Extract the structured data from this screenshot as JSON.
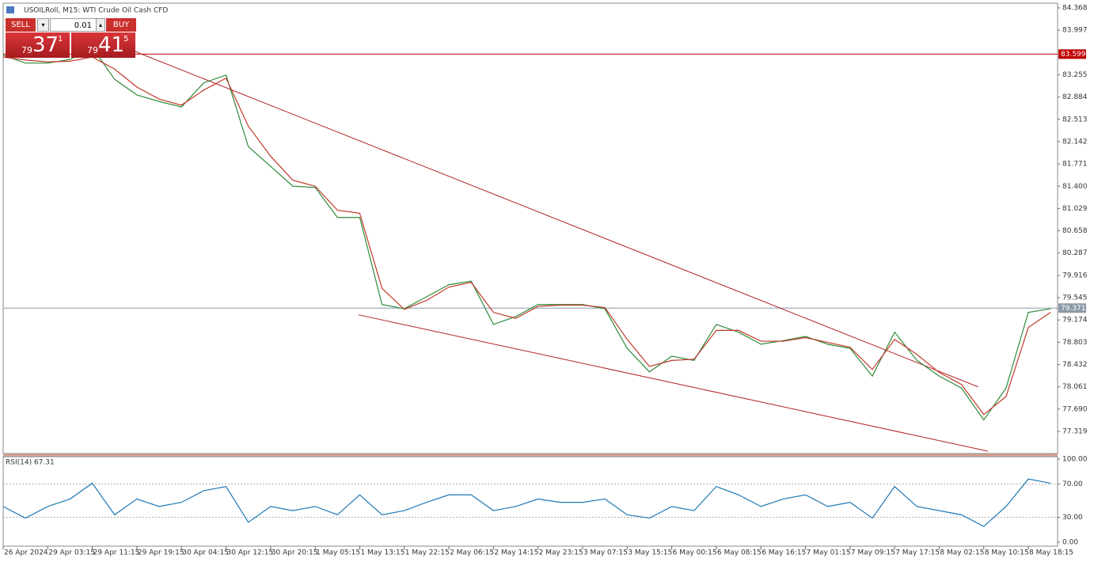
{
  "chart_data": [
    {
      "type": "line",
      "title": "USOILRoll, M15:  WTI Crude Oil Cash CFD",
      "x": [
        0,
        16,
        32,
        48,
        64,
        80,
        96,
        112,
        128,
        144,
        160,
        176,
        192,
        208,
        224,
        240,
        256,
        272,
        288,
        304,
        320,
        336,
        352,
        368,
        384,
        400,
        416,
        432,
        448,
        464,
        480,
        496,
        512,
        528,
        544,
        560,
        576,
        592,
        608,
        624,
        640,
        656,
        672,
        688,
        704,
        720,
        736,
        752
      ],
      "series": [
        {
          "color": "#2e8b3a",
          "values": [
            83.58,
            83.45,
            83.45,
            83.51,
            83.71,
            83.18,
            82.92,
            82.81,
            82.72,
            83.12,
            83.25,
            82.06,
            81.73,
            81.4,
            81.38,
            80.88,
            80.88,
            79.43,
            79.36,
            79.56,
            79.76,
            79.82,
            79.1,
            79.23,
            79.43,
            79.43,
            79.43,
            79.36,
            78.7,
            78.31,
            78.57,
            78.5,
            79.1,
            78.97,
            78.77,
            78.83,
            78.9,
            78.77,
            78.7,
            78.24,
            78.97,
            78.5,
            78.24,
            78.04,
            77.51,
            78.04,
            79.3,
            79.36
          ]
        },
        {
          "color": "#c0392b",
          "values": [
            83.55,
            83.5,
            83.47,
            83.48,
            83.55,
            83.35,
            83.05,
            82.85,
            82.75,
            83.0,
            83.2,
            82.4,
            81.9,
            81.5,
            81.4,
            81.0,
            80.95,
            79.7,
            79.35,
            79.5,
            79.72,
            79.8,
            79.3,
            79.2,
            79.4,
            79.42,
            79.42,
            79.38,
            78.85,
            78.4,
            78.5,
            78.52,
            79.0,
            79.0,
            78.82,
            78.82,
            78.88,
            78.8,
            78.72,
            78.35,
            78.85,
            78.6,
            78.3,
            78.1,
            77.6,
            77.9,
            79.05,
            79.3
          ]
        }
      ],
      "xlim": [
        0,
        757
      ],
      "ylim": [
        76.95,
        84.447
      ],
      "yticks": [
        84.368,
        83.997,
        83.255,
        82.884,
        82.513,
        82.142,
        81.771,
        {
          "value": 81.4,
          "label": "81.400"
        },
        81.029,
        80.658,
        80.287,
        79.916,
        79.545,
        79.174,
        78.803,
        78.432,
        78.061,
        {
          "value": 77.69,
          "label": "77.690"
        },
        77.319
      ],
      "levels": [
        {
          "value": 83.599,
          "color": "#c00000"
        },
        {
          "value": 79.371,
          "color": "#8c9aa8"
        }
      ],
      "trendlines": {
        "color": "#b22222",
        "lines": [
          {
            "x": [
              95,
              700
            ],
            "y": [
              83.64,
              78.06
            ]
          },
          {
            "x": [
              255,
              707
            ],
            "y": [
              79.26,
              76.99
            ]
          }
        ]
      }
    },
    {
      "type": "line",
      "title": "RSI(14) 67.31",
      "x": [
        0,
        16,
        32,
        48,
        64,
        80,
        96,
        112,
        128,
        144,
        160,
        176,
        192,
        208,
        224,
        240,
        256,
        272,
        288,
        304,
        320,
        336,
        352,
        368,
        384,
        400,
        416,
        432,
        448,
        464,
        480,
        496,
        512,
        528,
        544,
        560,
        576,
        592,
        608,
        624,
        640,
        656,
        672,
        688,
        704,
        720,
        736,
        752
      ],
      "series": [
        {
          "color": "#1f77b4",
          "values": [
            43,
            29,
            43,
            52,
            71,
            33,
            52,
            43,
            48,
            62,
            67,
            24,
            43,
            38,
            43,
            33,
            57,
            33,
            38,
            48,
            57,
            57,
            38,
            43,
            52,
            48,
            48,
            52,
            33,
            29,
            43,
            38,
            67,
            57,
            43,
            52,
            57,
            43,
            48,
            29,
            67,
            43,
            38,
            33,
            19,
            43,
            76,
            71
          ]
        }
      ],
      "xlim": [
        0,
        757
      ],
      "ylim": [
        -4.76,
        102.86
      ],
      "yticks": [
        {
          "value": 100,
          "label": "100.00"
        },
        {
          "value": 70,
          "label": "70.00"
        },
        {
          "value": 30,
          "label": "30.00"
        },
        {
          "value": 0,
          "label": "0.00"
        }
      ],
      "levels": [
        {
          "value": 70,
          "color": "#b0b0b0"
        },
        {
          "value": 30,
          "color": "#b0b0b0"
        }
      ],
      "xticks": [
        {
          "value": 0,
          "label": "26 Apr 2024"
        },
        {
          "value": 32,
          "label": "29 Apr 03:15"
        },
        {
          "value": 64,
          "label": "29 Apr 11:15"
        },
        {
          "value": 96,
          "label": "29 Apr 19:15"
        },
        {
          "value": 128,
          "label": "30 Apr 04:15"
        },
        {
          "value": 160,
          "label": "30 Apr 12:15"
        },
        {
          "value": 192,
          "label": "30 Apr 20:15"
        },
        {
          "value": 224,
          "label": "1 May 05:15"
        },
        {
          "value": 256,
          "label": "1 May 13:15"
        },
        {
          "value": 288,
          "label": "1 May 22:15"
        },
        {
          "value": 320,
          "label": "2 May 06:15"
        },
        {
          "value": 352,
          "label": "2 May 14:15"
        },
        {
          "value": 384,
          "label": "2 May 23:15"
        },
        {
          "value": 416,
          "label": "3 May 07:15"
        },
        {
          "value": 448,
          "label": "3 May 15:15"
        },
        {
          "value": 480,
          "label": "6 May 00:15"
        },
        {
          "value": 512,
          "label": "6 May 08:15"
        },
        {
          "value": 544,
          "label": "6 May 16:15"
        },
        {
          "value": 576,
          "label": "7 May 01:15"
        },
        {
          "value": 608,
          "label": "7 May 09:15"
        },
        {
          "value": 640,
          "label": "7 May 17:15"
        },
        {
          "value": 672,
          "label": "8 May 02:15"
        },
        {
          "value": 704,
          "label": "8 May 10:15"
        },
        {
          "value": 736,
          "label": "8 May 18:15"
        }
      ]
    }
  ],
  "trade_panel": {
    "sell": "SELL",
    "buy": "BUY",
    "volume": "0.01",
    "bid": {
      "big": "79",
      "main": "37",
      "small": "1"
    },
    "ask": {
      "big": "79",
      "main": "41",
      "small": "5"
    }
  }
}
